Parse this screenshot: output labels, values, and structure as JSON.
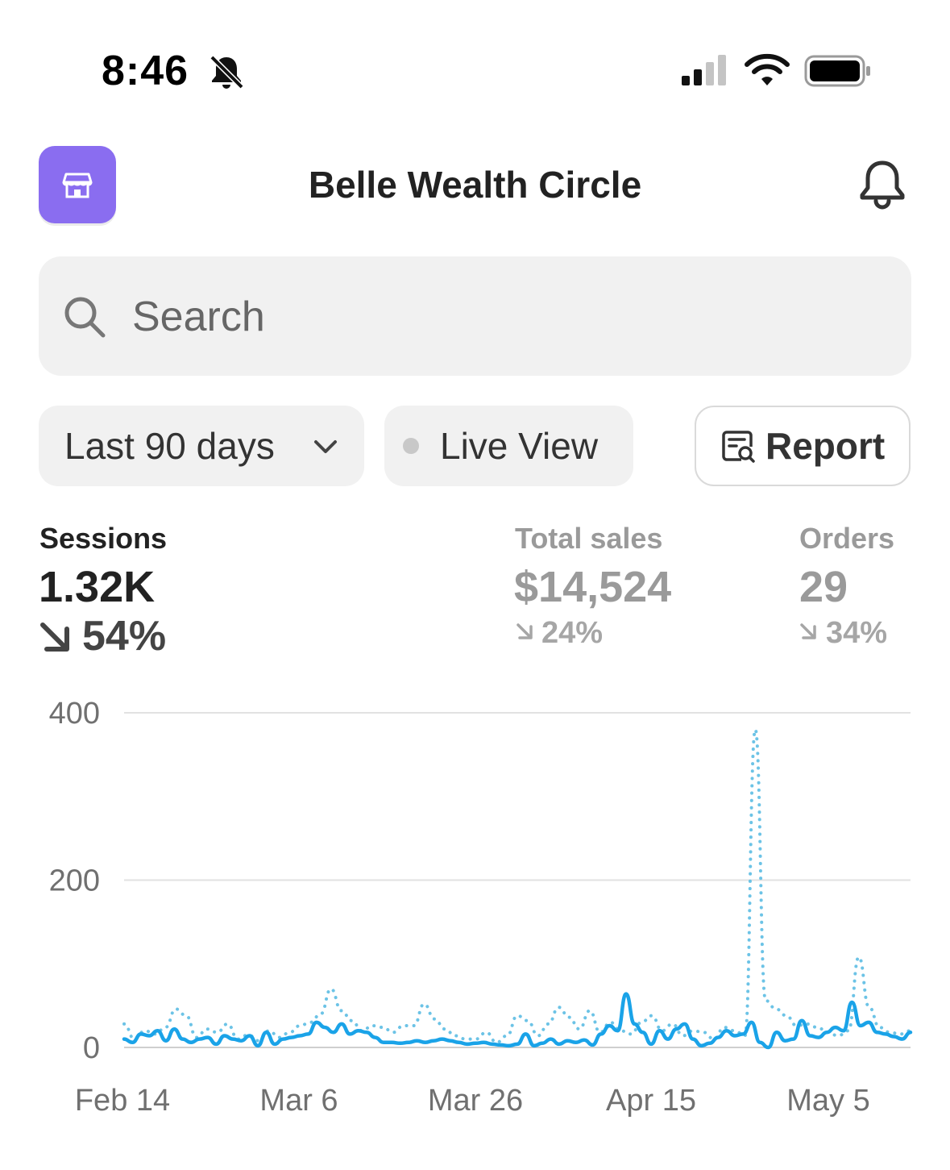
{
  "status_bar": {
    "time": "8:46",
    "icons": [
      "bell-slash-icon",
      "cellular-signal-icon",
      "wifi-icon",
      "battery-icon"
    ]
  },
  "header": {
    "title": "Belle Wealth Circle",
    "store_icon": "store-icon",
    "notification_icon": "bell-icon"
  },
  "search": {
    "placeholder": "Search"
  },
  "filters": {
    "range_label": "Last 90 days",
    "live_label": "Live View",
    "report_label": "Report"
  },
  "metrics": [
    {
      "label": "Sessions",
      "value": "1.32K",
      "change": "54%",
      "direction": "down",
      "selected": true
    },
    {
      "label": "Total sales",
      "value": "$14,524",
      "change": "24%",
      "direction": "down",
      "selected": false
    },
    {
      "label": "Orders",
      "value": "29",
      "change": "34%",
      "direction": "down",
      "selected": false
    }
  ],
  "colors": {
    "accent_store": "#8a6df0",
    "line_current": "#1aa3e8",
    "line_previous": "#6cc3e6",
    "grid": "#e2e2e2"
  },
  "chart_data": {
    "type": "line",
    "y_ticks": [
      "400",
      "200",
      "0"
    ],
    "x_ticks": [
      "Feb 14",
      "Mar 6",
      "Mar 26",
      "Apr 15",
      "May 5"
    ],
    "ylim": [
      0,
      400
    ],
    "x_start": "Feb 14",
    "grid": true,
    "series": [
      {
        "style": "solid",
        "values": [
          10,
          6,
          16,
          14,
          20,
          8,
          22,
          10,
          6,
          10,
          12,
          4,
          14,
          10,
          8,
          14,
          2,
          18,
          4,
          10,
          12,
          14,
          16,
          30,
          24,
          18,
          28,
          16,
          20,
          18,
          12,
          6,
          6,
          5,
          6,
          8,
          6,
          8,
          10,
          8,
          6,
          4,
          5,
          6,
          4,
          3,
          2,
          4,
          16,
          2,
          5,
          10,
          4,
          8,
          6,
          9,
          3,
          16,
          26,
          20,
          64,
          28,
          18,
          4,
          20,
          10,
          22,
          28,
          10,
          2,
          5,
          12,
          20,
          14,
          16,
          30,
          6,
          0,
          18,
          8,
          10,
          32,
          14,
          12,
          18,
          24,
          20,
          54,
          26,
          30,
          18,
          16,
          13,
          10,
          18
        ]
      },
      {
        "style": "dotted",
        "values": [
          28,
          10,
          20,
          16,
          24,
          46,
          38,
          12,
          22,
          18,
          28,
          10,
          15,
          8,
          20,
          12,
          18,
          26,
          30,
          40,
          70,
          44,
          32,
          20,
          26,
          24,
          18,
          26,
          26,
          52,
          34,
          22,
          14,
          10,
          10,
          18,
          6,
          14,
          38,
          32,
          14,
          28,
          48,
          36,
          22,
          44,
          18,
          30,
          20,
          16,
          30,
          38,
          20,
          28,
          14,
          20,
          18,
          10,
          24,
          20,
          14,
          380,
          56,
          46,
          38,
          26,
          28,
          24,
          18,
          14,
          20,
          108,
          48,
          24,
          18,
          16,
          20
        ]
      }
    ]
  }
}
